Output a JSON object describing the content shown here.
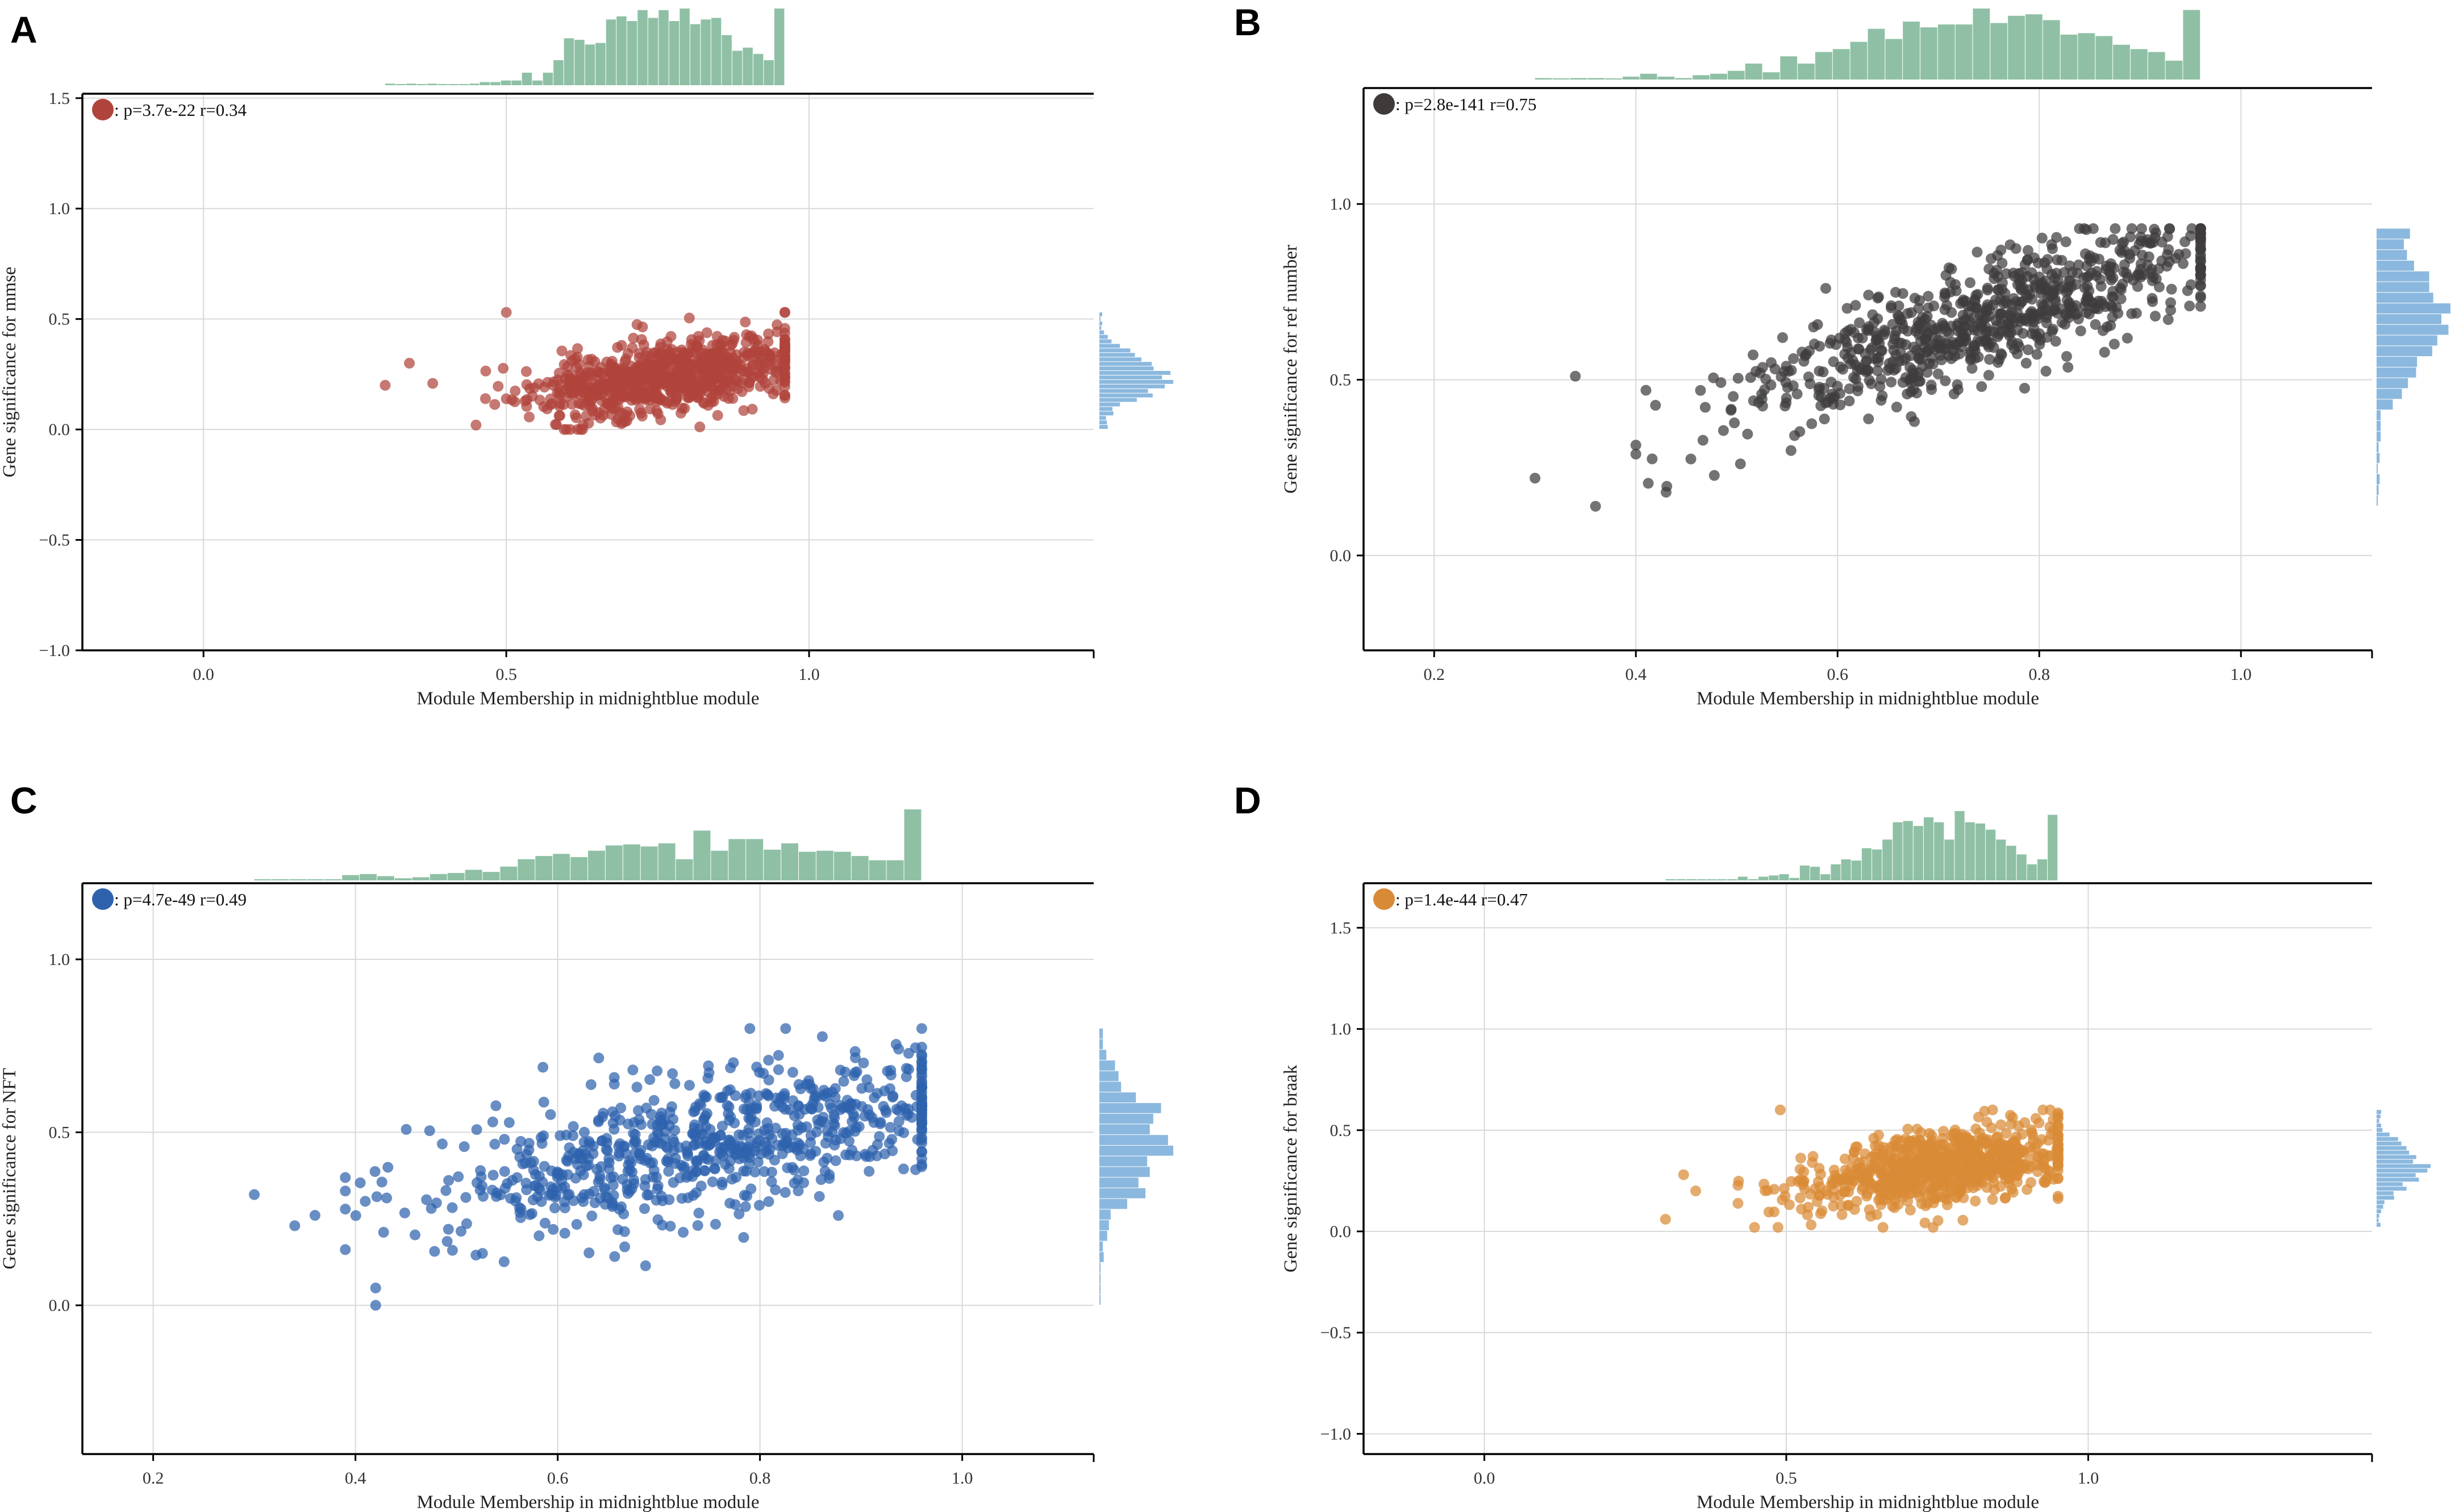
{
  "figure": {
    "panels": [
      "A",
      "B",
      "C",
      "D"
    ]
  },
  "chart_data": [
    {
      "panel": "A",
      "type": "scatter",
      "title": "",
      "xlabel": "Module Membership in midnightblue module",
      "ylabel": "Gene significance for mmse",
      "legend": ": p=3.7e-22 r=0.34",
      "legend_position": "top-left",
      "color": "#b0443c",
      "xlim": [
        -0.2,
        1.47
      ],
      "ylim": [
        -1.0,
        1.52
      ],
      "xticks": [
        0.0,
        0.5,
        1.0
      ],
      "xticklabels": [
        "0.0",
        "0.5",
        "1.0"
      ],
      "yticks": [
        -1.0,
        -0.5,
        0.0,
        0.5,
        1.0,
        1.5
      ],
      "yticklabels": [
        "−1.0",
        "−0.5",
        "0.0",
        "0.5",
        "1.0",
        "1.5"
      ],
      "points": {
        "n": 800,
        "x_mean": 0.76,
        "x_sd": 0.11,
        "x_min": 0.3,
        "x_max": 0.96,
        "y_intercept": -0.05,
        "y_slope": 0.38,
        "y_noise": 0.08,
        "y_min": 0.0,
        "y_max": 0.53,
        "seed": 11
      },
      "outliers": [
        [
          0.3,
          0.2
        ],
        [
          0.34,
          0.3
        ],
        [
          0.5,
          0.53
        ],
        [
          0.45,
          0.02
        ]
      ],
      "grid": true,
      "marginal_x": true,
      "marginal_y": true
    },
    {
      "panel": "B",
      "type": "scatter",
      "title": "",
      "xlabel": "Module Membership in midnightblue module",
      "ylabel": "Gene significance for ref number",
      "legend": ": p=2.8e-141 r=0.75",
      "legend_position": "top-left",
      "color": "#3f3b3b",
      "xlim": [
        0.13,
        1.13
      ],
      "ylim": [
        -0.27,
        1.33
      ],
      "xticks": [
        0.2,
        0.4,
        0.6,
        0.8,
        1.0
      ],
      "xticklabels": [
        "0.2",
        "0.4",
        "0.6",
        "0.8",
        "1.0"
      ],
      "yticks": [
        0.0,
        0.5,
        1.0
      ],
      "yticklabels": [
        "0.0",
        "0.5",
        "1.0"
      ],
      "points": {
        "n": 780,
        "x_mean": 0.74,
        "x_sd": 0.12,
        "x_min": 0.4,
        "x_max": 0.96,
        "y_intercept": -0.02,
        "y_slope": 0.92,
        "y_noise": 0.08,
        "y_min": 0.16,
        "y_max": 0.93,
        "seed": 23
      },
      "outliers": [
        [
          0.3,
          0.22
        ],
        [
          0.34,
          0.51
        ],
        [
          0.36,
          0.14
        ],
        [
          0.43,
          0.18
        ],
        [
          0.41,
          0.47
        ]
      ],
      "grid": true,
      "marginal_x": true,
      "marginal_y": true
    },
    {
      "panel": "C",
      "type": "scatter",
      "title": "",
      "xlabel": "Module Membership in midnightblue module",
      "ylabel": "Gene significance for NFT",
      "legend": ": p=4.7e-49 r=0.49",
      "legend_position": "top-left",
      "color": "#2e62ad",
      "xlim": [
        0.13,
        1.13
      ],
      "ylim": [
        -0.43,
        1.22
      ],
      "xticks": [
        0.2,
        0.4,
        0.6,
        0.8,
        1.0
      ],
      "xticklabels": [
        "0.2",
        "0.4",
        "0.6",
        "0.8",
        "1.0"
      ],
      "yticks": [
        0.0,
        0.5,
        1.0
      ],
      "yticklabels": [
        "0.0",
        "0.5",
        "1.0"
      ],
      "points": {
        "n": 760,
        "x_mean": 0.75,
        "x_sd": 0.14,
        "x_min": 0.39,
        "x_max": 0.96,
        "y_intercept": 0.05,
        "y_slope": 0.56,
        "y_noise": 0.1,
        "y_min": 0.08,
        "y_max": 0.8,
        "seed": 37
      },
      "outliers": [
        [
          0.3,
          0.32
        ],
        [
          0.34,
          0.23
        ],
        [
          0.36,
          0.26
        ],
        [
          0.42,
          0.0
        ],
        [
          0.42,
          0.05
        ],
        [
          0.79,
          0.8
        ]
      ],
      "grid": true,
      "marginal_x": true,
      "marginal_y": true
    },
    {
      "panel": "D",
      "type": "scatter",
      "title": "",
      "xlabel": "Module Membership in midnightblue module",
      "ylabel": "Gene significance for braak",
      "legend": ": p=1.4e-44 r=0.47",
      "legend_position": "top-left",
      "color": "#d98a36",
      "xlim": [
        -0.2,
        1.47
      ],
      "ylim": [
        -1.1,
        1.72
      ],
      "xticks": [
        0.0,
        0.5,
        1.0
      ],
      "xticklabels": [
        "0.0",
        "0.5",
        "1.0"
      ],
      "yticks": [
        -1.0,
        -0.5,
        0.0,
        0.5,
        1.0,
        1.5
      ],
      "yticklabels": [
        "−1.0",
        "−0.5",
        "0.0",
        "0.5",
        "1.0",
        "1.5"
      ],
      "points": {
        "n": 800,
        "x_mean": 0.76,
        "x_sd": 0.11,
        "x_min": 0.42,
        "x_max": 0.95,
        "y_intercept": 0.0,
        "y_slope": 0.42,
        "y_noise": 0.09,
        "y_min": 0.02,
        "y_max": 0.6,
        "seed": 53
      },
      "outliers": [
        [
          0.3,
          0.06
        ],
        [
          0.33,
          0.28
        ],
        [
          0.35,
          0.2
        ],
        [
          0.49,
          0.6
        ]
      ],
      "grid": true,
      "marginal_x": true,
      "marginal_y": true
    }
  ],
  "colors": {
    "marginal_x": "#8fc0a5",
    "marginal_y": "#8bb8de",
    "grid": "#d9d9d9"
  }
}
